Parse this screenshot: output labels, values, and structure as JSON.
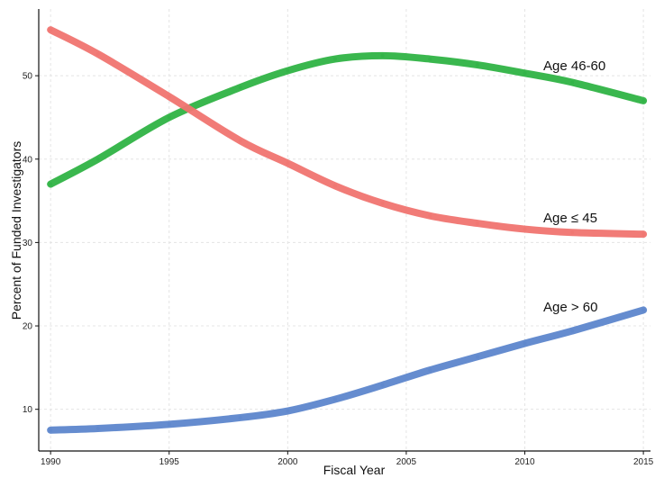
{
  "chart_data": {
    "type": "line",
    "title": "",
    "xlabel": "Fiscal Year",
    "ylabel": "Percent of Funded Investigators",
    "xlim": [
      1989.5,
      2015.3
    ],
    "ylim": [
      5,
      58
    ],
    "x_ticks": [
      1990,
      1995,
      2000,
      2005,
      2010,
      2015
    ],
    "y_ticks": [
      10,
      20,
      30,
      40,
      50
    ],
    "grid": true,
    "legend": "none",
    "series": [
      {
        "name": "Age 46-60",
        "label": "Age 46-60",
        "color": "#2fb344",
        "x": [
          1990,
          1992,
          1995,
          1998,
          2000,
          2002,
          2004,
          2006,
          2008,
          2010,
          2012,
          2015
        ],
        "y": [
          37.0,
          40.0,
          45.0,
          48.6,
          50.6,
          52.0,
          52.4,
          52.0,
          51.3,
          50.3,
          49.2,
          47.0
        ]
      },
      {
        "name": "Age ≤ 45",
        "label": "Age ≤ 45",
        "color": "#f07470",
        "x": [
          1990,
          1992,
          1995,
          1998,
          2000,
          2002,
          2004,
          2006,
          2008,
          2010,
          2012,
          2015
        ],
        "y": [
          55.5,
          52.6,
          47.5,
          42.2,
          39.5,
          36.8,
          34.7,
          33.2,
          32.3,
          31.6,
          31.2,
          31.0
        ]
      },
      {
        "name": "Age > 60",
        "label": "Age > 60",
        "color": "#5d86cc",
        "x": [
          1990,
          1992,
          1995,
          1998,
          2000,
          2002,
          2004,
          2006,
          2008,
          2010,
          2012,
          2015
        ],
        "y": [
          7.5,
          7.7,
          8.2,
          9.0,
          9.8,
          11.2,
          12.9,
          14.7,
          16.3,
          17.9,
          19.4,
          21.9
        ]
      }
    ]
  }
}
